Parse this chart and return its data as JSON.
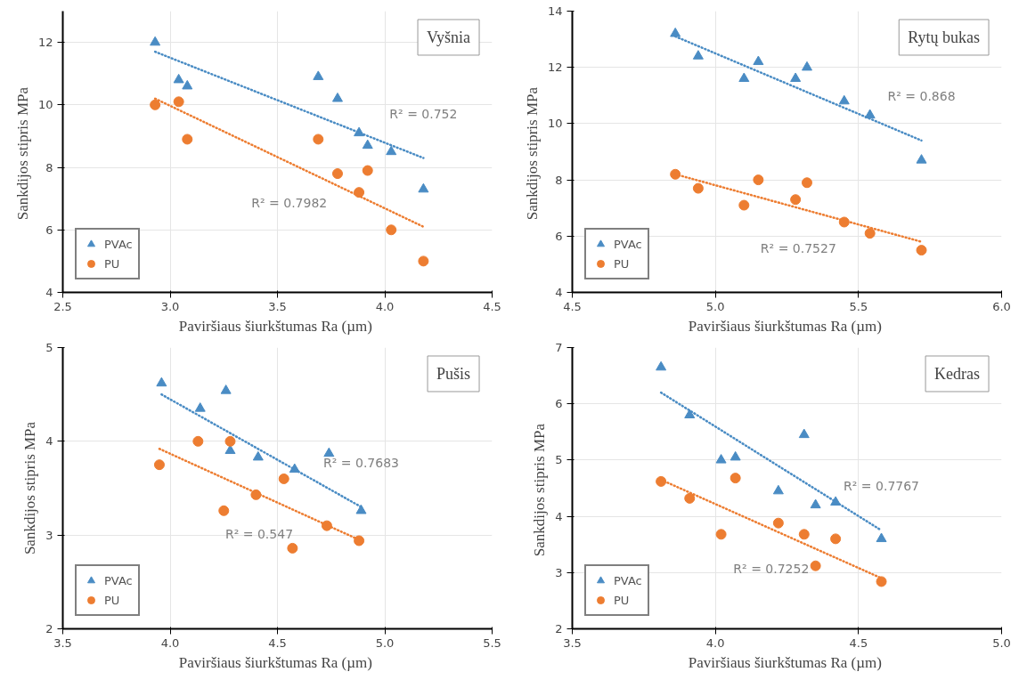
{
  "chart_data": [
    {
      "type": "scatter",
      "title": "Vyšnia",
      "xlabel": "Paviršiaus šiurkštumas Ra  (µm)",
      "ylabel": "Sankdijos stipris  MPa",
      "xlim": [
        2.5,
        4.5
      ],
      "ylim": [
        4,
        13
      ],
      "xticks": [
        {
          "value": 2.5,
          "label": "2.5"
        },
        {
          "value": 3,
          "label": "3.0"
        },
        {
          "value": 3.5,
          "label": "3.5"
        },
        {
          "value": 4,
          "label": "4.0"
        },
        {
          "value": 4.5,
          "label": "4.5"
        }
      ],
      "yticks": [
        4,
        6,
        8,
        10,
        12
      ],
      "grid": true,
      "legend": "bottom left",
      "series": [
        {
          "name": "PVAc",
          "color": "#4a8cc4",
          "marker": "triangle",
          "x": [
            2.93,
            3.04,
            3.08,
            3.69,
            3.78,
            3.88,
            3.92,
            4.03,
            4.18
          ],
          "values": [
            12.0,
            10.8,
            10.6,
            10.9,
            10.2,
            9.1,
            8.7,
            8.5,
            7.3
          ]
        },
        {
          "name": "PU",
          "color": "#ed7d31",
          "marker": "circle",
          "x": [
            2.93,
            3.04,
            3.08,
            3.69,
            3.78,
            3.88,
            3.92,
            4.03,
            4.18
          ],
          "values": [
            10.0,
            10.1,
            8.9,
            8.9,
            7.8,
            7.2,
            7.9,
            6.0,
            5.0
          ]
        },
        {
          "type": "line",
          "color": "#4a8cc4",
          "line_style": "dotted",
          "x": [
            2.93,
            4.18
          ],
          "values": [
            11.7,
            8.3
          ]
        },
        {
          "type": "line",
          "color": "#ed7d31",
          "line_style": "dotted",
          "x": [
            2.93,
            4.18
          ],
          "values": [
            10.2,
            6.1
          ]
        }
      ],
      "annotations": [
        "R² = 0.752",
        "R² = 0.7982"
      ]
    },
    {
      "type": "scatter",
      "title": "Rytų bukas",
      "xlabel": "Paviršiaus šiurkštumas Ra  (µm)",
      "ylabel": "Sankdijos stipris  MPa",
      "xlim": [
        4.5,
        6.0
      ],
      "ylim": [
        4,
        14
      ],
      "xticks": [
        {
          "value": 4.5,
          "label": "4.5"
        },
        {
          "value": 5,
          "label": "5.0"
        },
        {
          "value": 5.5,
          "label": "5.5"
        },
        {
          "value": 6,
          "label": "6.0"
        }
      ],
      "yticks": [
        4,
        6,
        8,
        10,
        12,
        14
      ],
      "grid": true,
      "legend": "bottom left",
      "series": [
        {
          "name": "PVAc",
          "color": "#4a8cc4",
          "marker": "triangle",
          "x": [
            4.86,
            4.94,
            5.1,
            5.15,
            5.28,
            5.32,
            5.45,
            5.54,
            5.72
          ],
          "values": [
            13.2,
            12.4,
            11.6,
            12.2,
            11.6,
            12.0,
            10.8,
            10.3,
            8.7
          ]
        },
        {
          "name": "PU",
          "color": "#ed7d31",
          "marker": "circle",
          "x": [
            4.86,
            4.94,
            5.1,
            5.15,
            5.28,
            5.32,
            5.45,
            5.54,
            5.72
          ],
          "values": [
            8.2,
            7.7,
            7.1,
            8.0,
            7.3,
            7.9,
            6.5,
            6.1,
            5.5
          ]
        },
        {
          "type": "line",
          "color": "#4a8cc4",
          "line_style": "dotted",
          "x": [
            4.86,
            5.72
          ],
          "values": [
            13.1,
            9.4
          ]
        },
        {
          "type": "line",
          "color": "#ed7d31",
          "line_style": "dotted",
          "x": [
            4.86,
            5.72
          ],
          "values": [
            8.2,
            5.8
          ]
        }
      ],
      "annotations": [
        "R² = 0.868",
        "R² = 0.7527"
      ]
    },
    {
      "type": "scatter",
      "title": "Pušis",
      "xlabel": "Paviršiaus šiurkštumas Ra  (µm)",
      "ylabel": "Sankdijos stipris MPa",
      "xlim": [
        3.5,
        5.5
      ],
      "ylim": [
        2,
        5
      ],
      "xticks": [
        {
          "value": 3.5,
          "label": "3.5"
        },
        {
          "value": 4,
          "label": "4.0"
        },
        {
          "value": 4.5,
          "label": "4.5"
        },
        {
          "value": 5,
          "label": "5.0"
        },
        {
          "value": 5.5,
          "label": "5.5"
        }
      ],
      "yticks": [
        2,
        3,
        4,
        5
      ],
      "grid": true,
      "legend": "bottom left",
      "series": [
        {
          "name": "PVAc",
          "color": "#4a8cc4",
          "marker": "triangle",
          "x": [
            3.96,
            4.14,
            4.26,
            4.28,
            4.41,
            4.58,
            4.74,
            4.89
          ],
          "values": [
            4.62,
            4.35,
            4.54,
            3.9,
            3.83,
            3.7,
            3.87,
            3.26
          ]
        },
        {
          "name": "PU",
          "color": "#ed7d31",
          "marker": "circle",
          "x": [
            3.95,
            4.13,
            4.25,
            4.28,
            4.4,
            4.53,
            4.57,
            4.73,
            4.88
          ],
          "values": [
            3.75,
            4.0,
            3.26,
            4.0,
            3.43,
            3.6,
            2.86,
            3.1,
            2.94
          ]
        },
        {
          "type": "line",
          "color": "#4a8cc4",
          "line_style": "dotted",
          "x": [
            3.96,
            4.89
          ],
          "values": [
            4.5,
            3.3
          ]
        },
        {
          "type": "line",
          "color": "#ed7d31",
          "line_style": "dotted",
          "x": [
            3.95,
            4.88
          ],
          "values": [
            3.92,
            2.95
          ]
        }
      ],
      "annotations": [
        "R² = 0.7683",
        "R² = 0.547"
      ]
    },
    {
      "type": "scatter",
      "title": "Kedras",
      "xlabel": "Paviršiaus šiurkštumas Ra  (µm)",
      "ylabel": "Sankdijos stipris  MPa",
      "xlim": [
        3.5,
        5.0
      ],
      "ylim": [
        2,
        7
      ],
      "xticks": [
        {
          "value": 3.5,
          "label": "3.5"
        },
        {
          "value": 4,
          "label": "4.0"
        },
        {
          "value": 4.5,
          "label": "4.5"
        },
        {
          "value": 5,
          "label": "5.0"
        }
      ],
      "yticks": [
        2,
        3,
        4,
        5,
        6,
        7
      ],
      "grid": true,
      "legend": "bottom left",
      "series": [
        {
          "name": "PVAc",
          "color": "#4a8cc4",
          "marker": "triangle",
          "x": [
            3.81,
            3.91,
            4.02,
            4.07,
            4.22,
            4.31,
            4.35,
            4.42,
            4.58
          ],
          "values": [
            6.65,
            5.8,
            5.0,
            5.05,
            4.45,
            5.45,
            4.2,
            4.25,
            3.6
          ]
        },
        {
          "name": "PU",
          "color": "#ed7d31",
          "marker": "circle",
          "x": [
            3.81,
            3.91,
            4.02,
            4.07,
            4.22,
            4.31,
            4.35,
            4.42,
            4.58
          ],
          "values": [
            4.62,
            4.32,
            3.68,
            4.68,
            3.88,
            3.68,
            3.12,
            3.6,
            2.84
          ]
        },
        {
          "type": "line",
          "color": "#4a8cc4",
          "line_style": "dotted",
          "x": [
            3.81,
            4.58
          ],
          "values": [
            6.2,
            3.75
          ]
        },
        {
          "type": "line",
          "color": "#ed7d31",
          "line_style": "dotted",
          "x": [
            3.81,
            4.58
          ],
          "values": [
            4.65,
            2.9
          ]
        }
      ],
      "annotations": [
        "R² = 0.7767",
        "R² = 0.7252"
      ]
    }
  ]
}
